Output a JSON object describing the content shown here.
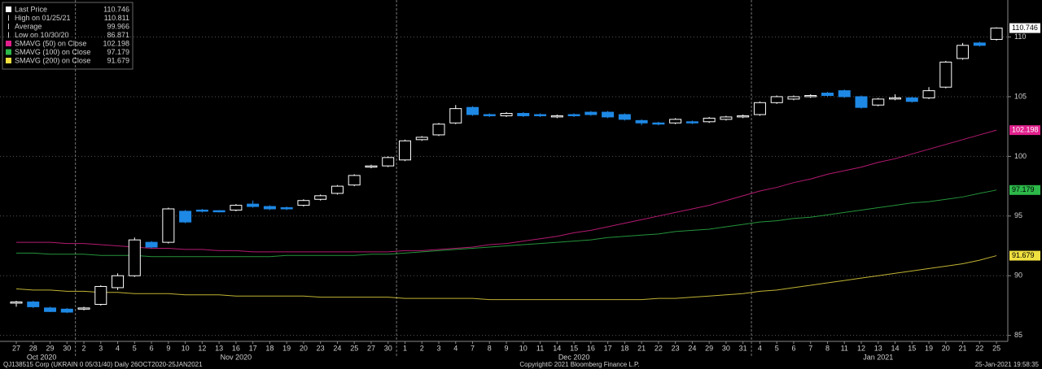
{
  "chart_data": {
    "type": "candlestick",
    "categories": [
      "27",
      "28",
      "29",
      "30",
      "2",
      "3",
      "4",
      "5",
      "6",
      "9",
      "10",
      "12",
      "13",
      "16",
      "17",
      "18",
      "19",
      "20",
      "23",
      "24",
      "25",
      "27",
      "30",
      "1",
      "2",
      "3",
      "4",
      "7",
      "8",
      "9",
      "10",
      "11",
      "14",
      "15",
      "16",
      "17",
      "18",
      "21",
      "22",
      "23",
      "24",
      "29",
      "30",
      "31",
      "4",
      "5",
      "6",
      "7",
      "8",
      "11",
      "12",
      "13",
      "14",
      "15",
      "19",
      "20",
      "21",
      "22",
      "25"
    ],
    "month_labels": [
      "Oct 2020",
      "Nov 2020",
      "Dec 2020",
      "Jan 2021"
    ],
    "open": [
      87.7,
      87.8,
      87.3,
      87.2,
      87.2,
      87.6,
      89.0,
      90.0,
      92.8,
      92.8,
      95.4,
      95.5,
      95.45,
      95.5,
      96.0,
      95.8,
      95.7,
      95.9,
      96.4,
      96.9,
      97.6,
      99.1,
      99.2,
      99.7,
      101.4,
      101.8,
      102.8,
      104.1,
      103.5,
      103.4,
      103.6,
      103.5,
      103.3,
      103.5,
      103.7,
      103.7,
      103.5,
      103.0,
      102.8,
      102.8,
      102.9,
      102.9,
      103.1,
      103.3,
      103.5,
      104.5,
      104.8,
      105.0,
      105.3,
      105.5,
      105.0,
      104.3,
      104.8,
      104.9,
      104.9,
      105.8,
      108.2,
      109.5,
      109.8
    ],
    "high": [
      87.9,
      87.9,
      87.4,
      87.3,
      87.4,
      89.2,
      90.2,
      93.2,
      92.9,
      95.7,
      95.5,
      95.6,
      95.5,
      96.0,
      96.3,
      95.9,
      95.8,
      96.4,
      96.8,
      97.6,
      98.5,
      99.3,
      100.0,
      101.4,
      101.7,
      102.8,
      104.3,
      104.2,
      103.6,
      103.7,
      103.7,
      103.6,
      103.5,
      103.6,
      103.8,
      103.8,
      103.6,
      103.1,
      102.9,
      103.2,
      103.0,
      103.3,
      103.4,
      103.5,
      104.6,
      105.1,
      105.1,
      105.2,
      105.4,
      105.6,
      105.1,
      104.9,
      105.2,
      105.0,
      105.8,
      108.0,
      109.5,
      109.6,
      110.811
    ],
    "low": [
      87.4,
      87.3,
      86.95,
      86.871,
      87.1,
      87.5,
      88.8,
      89.9,
      92.3,
      92.7,
      94.4,
      95.3,
      95.3,
      95.4,
      95.7,
      95.5,
      95.5,
      95.8,
      96.3,
      96.8,
      97.5,
      99.0,
      99.1,
      99.6,
      101.3,
      101.7,
      102.7,
      103.4,
      103.3,
      103.3,
      103.3,
      103.3,
      103.2,
      103.3,
      103.4,
      103.2,
      103.0,
      102.6,
      102.6,
      102.7,
      102.7,
      102.8,
      103.0,
      103.2,
      103.4,
      104.4,
      104.7,
      104.9,
      105.0,
      104.9,
      104.0,
      104.2,
      104.7,
      104.5,
      104.8,
      105.7,
      108.1,
      109.2,
      109.7
    ],
    "close": [
      87.8,
      87.4,
      87.0,
      86.95,
      87.3,
      89.1,
      90.0,
      93.0,
      92.4,
      95.6,
      94.5,
      95.4,
      95.35,
      95.9,
      95.8,
      95.6,
      95.6,
      96.3,
      96.7,
      97.5,
      98.4,
      99.2,
      99.9,
      101.3,
      101.6,
      102.7,
      104.0,
      103.5,
      103.4,
      103.6,
      103.4,
      103.4,
      103.4,
      103.4,
      103.5,
      103.3,
      103.1,
      102.8,
      102.7,
      103.1,
      102.8,
      103.2,
      103.3,
      103.4,
      104.5,
      105.0,
      105.0,
      105.1,
      105.1,
      105.0,
      104.1,
      104.8,
      104.9,
      104.6,
      105.5,
      107.9,
      109.3,
      109.3,
      110.746
    ],
    "up_color": "#ffffff",
    "down_color": "#1e88e5",
    "series": [
      {
        "name": "SMAVG (50)  on Close",
        "color": "#e0208c",
        "values": [
          92.8,
          92.8,
          92.8,
          92.7,
          92.7,
          92.6,
          92.5,
          92.4,
          92.3,
          92.3,
          92.2,
          92.2,
          92.1,
          92.1,
          92.0,
          92.0,
          92.0,
          92.0,
          92.0,
          92.0,
          92.0,
          92.0,
          92.0,
          92.1,
          92.1,
          92.2,
          92.3,
          92.4,
          92.6,
          92.7,
          92.9,
          93.1,
          93.3,
          93.6,
          93.8,
          94.1,
          94.4,
          94.7,
          95.0,
          95.3,
          95.6,
          95.9,
          96.3,
          96.7,
          97.1,
          97.4,
          97.8,
          98.1,
          98.5,
          98.8,
          99.1,
          99.5,
          99.8,
          100.2,
          100.6,
          101.0,
          101.4,
          101.8,
          102.198
        ]
      },
      {
        "name": "SMAVG (100)  on Close",
        "color": "#2db84a",
        "values": [
          91.9,
          91.9,
          91.8,
          91.8,
          91.8,
          91.7,
          91.7,
          91.7,
          91.6,
          91.6,
          91.6,
          91.6,
          91.6,
          91.6,
          91.6,
          91.6,
          91.7,
          91.7,
          91.7,
          91.7,
          91.7,
          91.8,
          91.8,
          91.9,
          92.0,
          92.1,
          92.2,
          92.3,
          92.4,
          92.5,
          92.6,
          92.7,
          92.8,
          92.9,
          93.0,
          93.2,
          93.3,
          93.4,
          93.5,
          93.7,
          93.8,
          93.9,
          94.1,
          94.3,
          94.5,
          94.6,
          94.8,
          94.9,
          95.1,
          95.3,
          95.5,
          95.7,
          95.9,
          96.1,
          96.2,
          96.4,
          96.6,
          96.9,
          97.179
        ]
      },
      {
        "name": "SMAVG (200)  on Close",
        "color": "#f0e040",
        "values": [
          88.9,
          88.8,
          88.8,
          88.7,
          88.7,
          88.6,
          88.6,
          88.5,
          88.5,
          88.5,
          88.4,
          88.4,
          88.4,
          88.3,
          88.3,
          88.3,
          88.3,
          88.3,
          88.2,
          88.2,
          88.2,
          88.2,
          88.2,
          88.1,
          88.1,
          88.1,
          88.1,
          88.1,
          88.0,
          88.0,
          88.0,
          88.0,
          88.0,
          88.0,
          88.0,
          88.0,
          88.0,
          88.0,
          88.1,
          88.1,
          88.2,
          88.3,
          88.4,
          88.5,
          88.7,
          88.8,
          89.0,
          89.2,
          89.4,
          89.6,
          89.8,
          90.0,
          90.2,
          90.4,
          90.6,
          90.8,
          91.0,
          91.3,
          91.679
        ]
      }
    ],
    "legend": [
      {
        "label": "Last Price",
        "value": 110.746
      },
      {
        "label": "High on 01/25/21",
        "value": 110.811
      },
      {
        "label": "Average",
        "value": 99.966
      },
      {
        "label": "Low on 10/30/20",
        "value": 86.871
      },
      {
        "label": "SMAVG (50)  on Close",
        "value": 102.198
      },
      {
        "label": "SMAVG (100)  on Close",
        "value": 97.179
      },
      {
        "label": "SMAVG (200)  on Close",
        "value": 91.679
      }
    ],
    "ylim": [
      84.5,
      113.1
    ],
    "yticks": [
      85,
      90,
      95,
      100,
      105,
      110
    ],
    "grid": true
  },
  "footer": {
    "left": "QJ138515 Corp (UKRAIN 0 05/31/40)  Daily 26OCT2020-25JAN2021",
    "center": "Copyright© 2021 Bloomberg Finance L.P.",
    "right": "25-Jan-2021 19:58:35"
  }
}
